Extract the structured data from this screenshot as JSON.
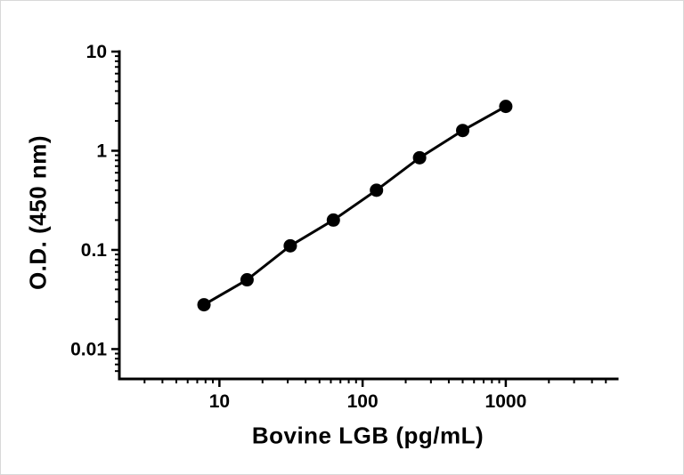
{
  "figure": {
    "background": "#ffffff",
    "border_color": "#d8d8d8"
  },
  "chart_data": {
    "type": "scatter",
    "title": "",
    "xlabel": "Bovine LGB (pg/mL)",
    "ylabel": "O.D. (450 nm)",
    "x_scale": "log",
    "y_scale": "log",
    "xlim": [
      2,
      6000
    ],
    "ylim": [
      0.005,
      10
    ],
    "grid": false,
    "legend": null,
    "axis_color": "#000000",
    "x_major_ticks": [
      {
        "value": 10,
        "label": "10"
      },
      {
        "value": 100,
        "label": "100"
      },
      {
        "value": 1000,
        "label": "1000"
      }
    ],
    "y_major_ticks": [
      {
        "value": 0.01,
        "label": "0.01"
      },
      {
        "value": 0.1,
        "label": "0.1"
      },
      {
        "value": 1,
        "label": "1"
      },
      {
        "value": 10,
        "label": "10"
      }
    ],
    "series": [
      {
        "name": "bovine-lgb-standard-curve",
        "marker": "circle",
        "marker_radius": 7.5,
        "color": "#000000",
        "line_width": 3,
        "points": [
          {
            "x": 7.8,
            "y": 0.028
          },
          {
            "x": 15.6,
            "y": 0.05
          },
          {
            "x": 31.25,
            "y": 0.11
          },
          {
            "x": 62.5,
            "y": 0.2
          },
          {
            "x": 125,
            "y": 0.4
          },
          {
            "x": 250,
            "y": 0.85
          },
          {
            "x": 500,
            "y": 1.6
          },
          {
            "x": 1000,
            "y": 2.8
          }
        ]
      }
    ]
  }
}
